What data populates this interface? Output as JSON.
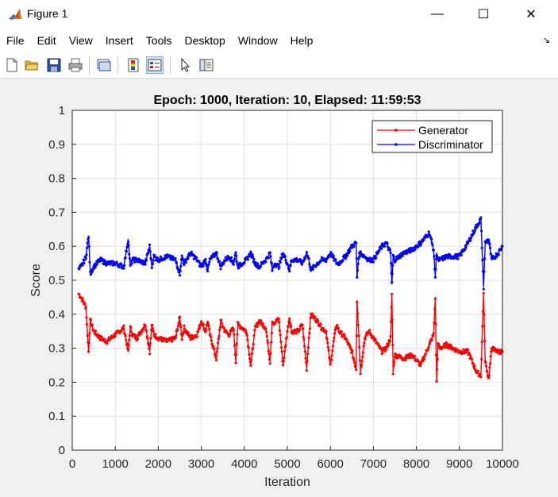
{
  "window": {
    "title": "Figure 1",
    "minimize_glyph": "—",
    "maximize_glyph": "☐",
    "close_glyph": "✕"
  },
  "menu": {
    "items": [
      "File",
      "Edit",
      "View",
      "Insert",
      "Tools",
      "Desktop",
      "Window",
      "Help"
    ],
    "dock_glyph": "↘"
  },
  "toolbar": {
    "buttons": [
      "new-figure-icon",
      "open-file-icon",
      "save-icon",
      "print-icon",
      "link-plot-icon",
      "insert-colorbar-icon",
      "insert-legend-icon",
      "edit-plot-arrow-icon",
      "property-inspector-icon"
    ]
  },
  "colors": {
    "generator": "#ff0000",
    "discriminator": "#0000ff",
    "matlab_icon": "#e86a19"
  },
  "chart_data": {
    "type": "line",
    "title": "Epoch: 1000, Iteration: 10, Elapsed: 11:59:53",
    "xlabel": "Iteration",
    "ylabel": "Score",
    "xlim": [
      0,
      10000
    ],
    "ylim": [
      0,
      1
    ],
    "xticks": [
      0,
      1000,
      2000,
      3000,
      4000,
      5000,
      6000,
      7000,
      8000,
      9000,
      10000
    ],
    "yticks": [
      0,
      0.1,
      0.2,
      0.3,
      0.4,
      0.5,
      0.6,
      0.7,
      0.8,
      0.9,
      1
    ],
    "grid": true,
    "legend_position": "top-right",
    "series": [
      {
        "name": "Generator",
        "x": [
          150,
          250,
          320,
          380,
          420,
          500,
          650,
          800,
          1000,
          1200,
          1300,
          1350,
          1400,
          1500,
          1700,
          1800,
          1850,
          1900,
          2000,
          2200,
          2400,
          2500,
          2550,
          2600,
          2750,
          2900,
          3000,
          3100,
          3150,
          3200,
          3350,
          3450,
          3550,
          3650,
          3750,
          3800,
          3850,
          4050,
          4150,
          4250,
          4350,
          4500,
          4600,
          4650,
          4700,
          4800,
          4900,
          5000,
          5050,
          5100,
          5250,
          5350,
          5450,
          5500,
          5550,
          5700,
          5800,
          5900,
          6000,
          6100,
          6150,
          6200,
          6350,
          6500,
          6600,
          6620,
          6660,
          6700,
          6800,
          6900,
          7000,
          7100,
          7200,
          7300,
          7400,
          7430,
          7460,
          7500,
          7700,
          7900,
          8100,
          8300,
          8400,
          8440,
          8470,
          8500,
          8550,
          8700,
          9000,
          9200,
          9400,
          9500,
          9560,
          9600,
          9680,
          9750,
          9900,
          10000
        ],
        "y": [
          0.46,
          0.44,
          0.42,
          0.29,
          0.38,
          0.35,
          0.33,
          0.32,
          0.34,
          0.36,
          0.29,
          0.36,
          0.34,
          0.33,
          0.37,
          0.29,
          0.37,
          0.34,
          0.33,
          0.32,
          0.33,
          0.39,
          0.33,
          0.36,
          0.33,
          0.34,
          0.38,
          0.35,
          0.38,
          0.34,
          0.27,
          0.38,
          0.35,
          0.34,
          0.36,
          0.26,
          0.37,
          0.35,
          0.25,
          0.36,
          0.38,
          0.36,
          0.26,
          0.38,
          0.37,
          0.39,
          0.25,
          0.35,
          0.39,
          0.35,
          0.35,
          0.37,
          0.24,
          0.33,
          0.4,
          0.38,
          0.36,
          0.35,
          0.25,
          0.34,
          0.37,
          0.35,
          0.33,
          0.29,
          0.24,
          0.44,
          0.34,
          0.23,
          0.33,
          0.35,
          0.33,
          0.31,
          0.29,
          0.3,
          0.33,
          0.46,
          0.23,
          0.28,
          0.27,
          0.28,
          0.25,
          0.31,
          0.34,
          0.45,
          0.2,
          0.31,
          0.3,
          0.31,
          0.29,
          0.29,
          0.23,
          0.22,
          0.46,
          0.26,
          0.21,
          0.3,
          0.29,
          0.29
        ]
      },
      {
        "name": "Discriminator",
        "x": [
          150,
          250,
          320,
          380,
          420,
          500,
          650,
          800,
          1000,
          1200,
          1300,
          1350,
          1400,
          1500,
          1700,
          1800,
          1850,
          1900,
          2000,
          2200,
          2400,
          2500,
          2550,
          2600,
          2750,
          2900,
          3000,
          3100,
          3150,
          3200,
          3350,
          3450,
          3550,
          3650,
          3750,
          3800,
          3850,
          4050,
          4150,
          4250,
          4350,
          4500,
          4600,
          4650,
          4700,
          4800,
          4900,
          5000,
          5050,
          5100,
          5250,
          5350,
          5450,
          5500,
          5550,
          5700,
          5800,
          5900,
          6000,
          6100,
          6150,
          6200,
          6350,
          6500,
          6600,
          6620,
          6660,
          6700,
          6800,
          6900,
          7000,
          7100,
          7200,
          7300,
          7400,
          7430,
          7460,
          7500,
          7700,
          7900,
          8100,
          8300,
          8400,
          8440,
          8470,
          8500,
          8550,
          8700,
          9000,
          9200,
          9400,
          9500,
          9560,
          9600,
          9680,
          9750,
          9900,
          10000
        ],
        "y": [
          0.53,
          0.55,
          0.57,
          0.63,
          0.52,
          0.54,
          0.56,
          0.55,
          0.55,
          0.54,
          0.62,
          0.54,
          0.56,
          0.56,
          0.55,
          0.6,
          0.54,
          0.57,
          0.56,
          0.57,
          0.56,
          0.52,
          0.57,
          0.55,
          0.58,
          0.56,
          0.54,
          0.56,
          0.53,
          0.56,
          0.58,
          0.54,
          0.56,
          0.57,
          0.55,
          0.58,
          0.54,
          0.56,
          0.58,
          0.55,
          0.54,
          0.56,
          0.58,
          0.53,
          0.55,
          0.54,
          0.58,
          0.55,
          0.53,
          0.56,
          0.56,
          0.55,
          0.58,
          0.56,
          0.53,
          0.55,
          0.56,
          0.56,
          0.58,
          0.56,
          0.55,
          0.55,
          0.57,
          0.6,
          0.61,
          0.51,
          0.57,
          0.58,
          0.57,
          0.56,
          0.56,
          0.58,
          0.6,
          0.61,
          0.58,
          0.49,
          0.57,
          0.56,
          0.58,
          0.59,
          0.61,
          0.64,
          0.59,
          0.51,
          0.58,
          0.56,
          0.56,
          0.57,
          0.57,
          0.61,
          0.66,
          0.68,
          0.48,
          0.61,
          0.62,
          0.56,
          0.58,
          0.6
        ]
      }
    ]
  }
}
